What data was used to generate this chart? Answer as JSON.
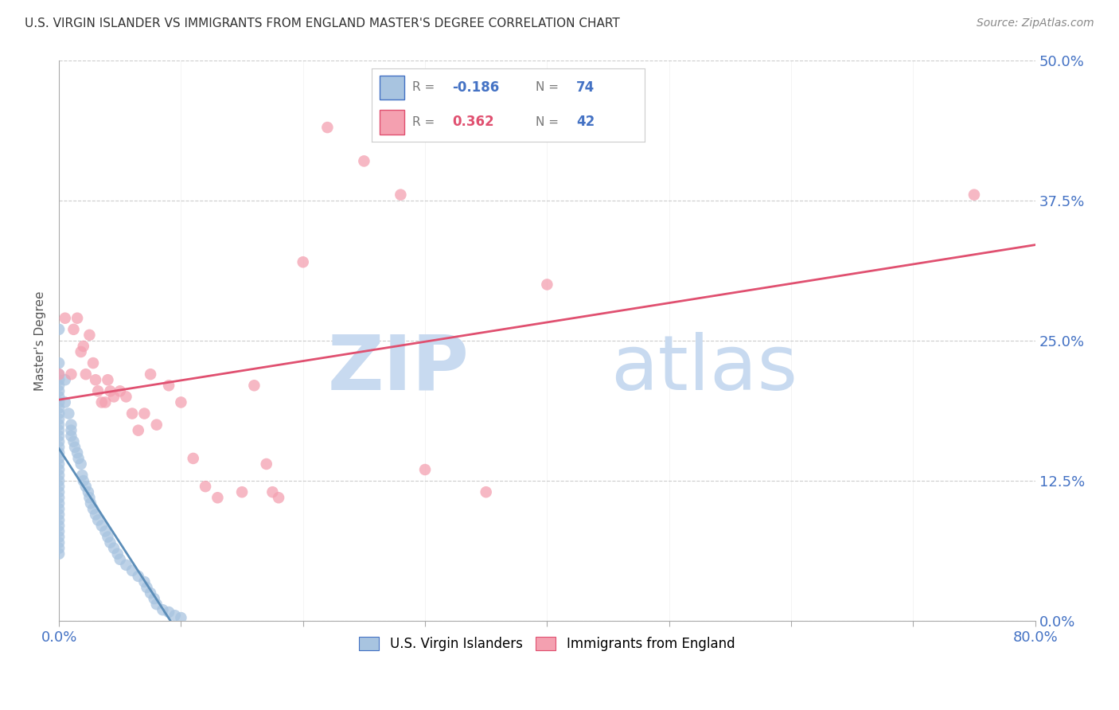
{
  "title": "U.S. VIRGIN ISLANDER VS IMMIGRANTS FROM ENGLAND MASTER'S DEGREE CORRELATION CHART",
  "source": "Source: ZipAtlas.com",
  "ylabel": "Master's Degree",
  "ytick_values": [
    0.0,
    0.125,
    0.25,
    0.375,
    0.5
  ],
  "xtick_values": [
    0.0,
    0.1,
    0.2,
    0.3,
    0.4,
    0.5,
    0.6,
    0.7,
    0.8
  ],
  "xlim": [
    0.0,
    0.8
  ],
  "ylim": [
    0.0,
    0.5
  ],
  "series1_label": "U.S. Virgin Islanders",
  "series1_color": "#a8c4e0",
  "series1_R": -0.186,
  "series1_N": 74,
  "series1_line_color": "#5b8db8",
  "series2_label": "Immigrants from England",
  "series2_color": "#f4a0b0",
  "series2_R": 0.362,
  "series2_N": 42,
  "series2_line_color": "#e05070",
  "legend_R1_color": "#4472c4",
  "legend_R2_color": "#e05070",
  "legend_N_color": "#4472c4",
  "watermark_zip": "ZIP",
  "watermark_atlas": "atlas",
  "watermark_color": "#ccdff0",
  "background_color": "#ffffff",
  "grid_color": "#cccccc",
  "title_color": "#333333",
  "axis_label_color": "#4472c4",
  "scatter1_x": [
    0.0,
    0.0,
    0.0,
    0.0,
    0.0,
    0.0,
    0.0,
    0.0,
    0.0,
    0.0,
    0.0,
    0.0,
    0.0,
    0.0,
    0.0,
    0.0,
    0.0,
    0.0,
    0.0,
    0.0,
    0.0,
    0.0,
    0.0,
    0.0,
    0.0,
    0.0,
    0.0,
    0.0,
    0.0,
    0.0,
    0.0,
    0.0,
    0.0,
    0.0,
    0.0,
    0.005,
    0.005,
    0.008,
    0.01,
    0.01,
    0.01,
    0.012,
    0.013,
    0.015,
    0.016,
    0.018,
    0.019,
    0.02,
    0.022,
    0.024,
    0.025,
    0.026,
    0.028,
    0.03,
    0.032,
    0.035,
    0.038,
    0.04,
    0.042,
    0.045,
    0.048,
    0.05,
    0.055,
    0.06,
    0.065,
    0.07,
    0.072,
    0.075,
    0.078,
    0.08,
    0.085,
    0.09,
    0.095,
    0.1
  ],
  "scatter1_y": [
    0.26,
    0.23,
    0.22,
    0.215,
    0.21,
    0.205,
    0.2,
    0.195,
    0.19,
    0.185,
    0.18,
    0.175,
    0.17,
    0.165,
    0.16,
    0.155,
    0.15,
    0.145,
    0.14,
    0.135,
    0.13,
    0.125,
    0.12,
    0.115,
    0.11,
    0.105,
    0.1,
    0.095,
    0.09,
    0.085,
    0.08,
    0.075,
    0.07,
    0.065,
    0.06,
    0.215,
    0.195,
    0.185,
    0.175,
    0.17,
    0.165,
    0.16,
    0.155,
    0.15,
    0.145,
    0.14,
    0.13,
    0.125,
    0.12,
    0.115,
    0.11,
    0.105,
    0.1,
    0.095,
    0.09,
    0.085,
    0.08,
    0.075,
    0.07,
    0.065,
    0.06,
    0.055,
    0.05,
    0.045,
    0.04,
    0.035,
    0.03,
    0.025,
    0.02,
    0.015,
    0.01,
    0.008,
    0.005,
    0.003
  ],
  "scatter2_x": [
    0.0,
    0.005,
    0.01,
    0.012,
    0.015,
    0.018,
    0.02,
    0.022,
    0.025,
    0.028,
    0.03,
    0.032,
    0.035,
    0.038,
    0.04,
    0.042,
    0.045,
    0.05,
    0.055,
    0.06,
    0.065,
    0.07,
    0.075,
    0.08,
    0.09,
    0.1,
    0.11,
    0.12,
    0.13,
    0.15,
    0.16,
    0.17,
    0.175,
    0.18,
    0.2,
    0.22,
    0.25,
    0.28,
    0.3,
    0.35,
    0.4,
    0.75
  ],
  "scatter2_y": [
    0.22,
    0.27,
    0.22,
    0.26,
    0.27,
    0.24,
    0.245,
    0.22,
    0.255,
    0.23,
    0.215,
    0.205,
    0.195,
    0.195,
    0.215,
    0.205,
    0.2,
    0.205,
    0.2,
    0.185,
    0.17,
    0.185,
    0.22,
    0.175,
    0.21,
    0.195,
    0.145,
    0.12,
    0.11,
    0.115,
    0.21,
    0.14,
    0.115,
    0.11,
    0.32,
    0.44,
    0.41,
    0.38,
    0.135,
    0.115,
    0.3,
    0.38
  ]
}
